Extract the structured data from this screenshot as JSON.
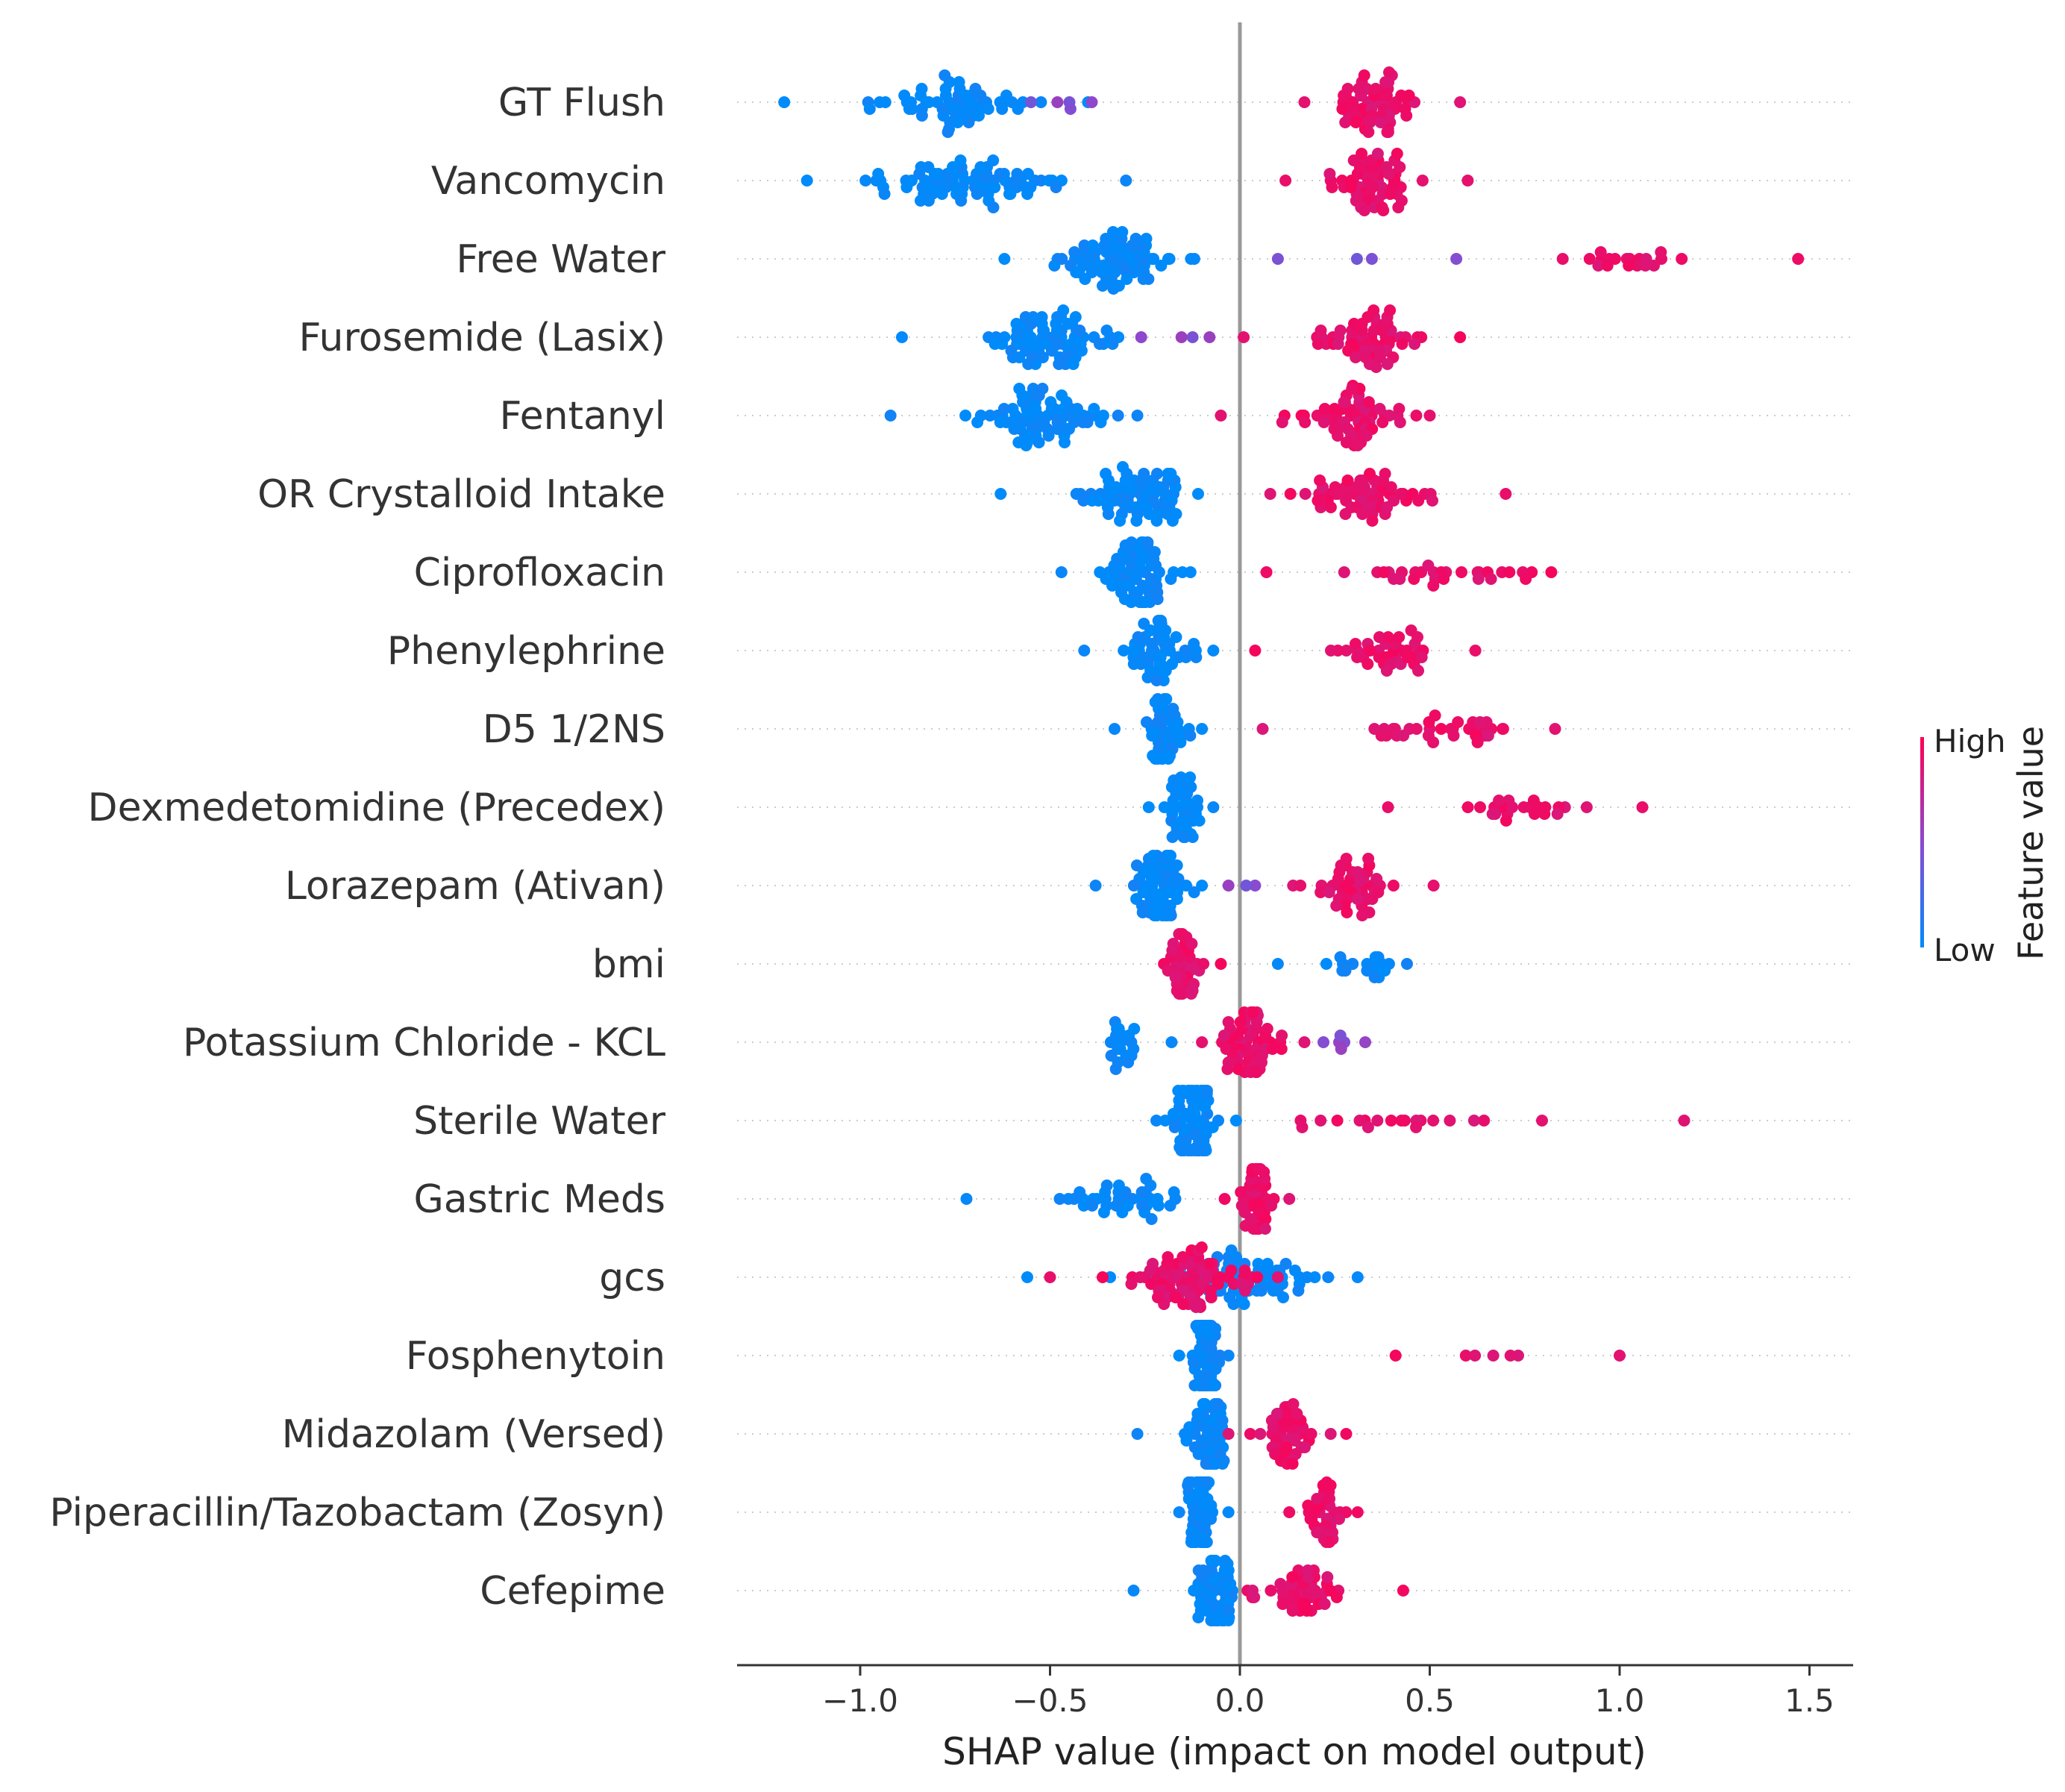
{
  "chart_data": {
    "type": "scatter",
    "subtype": "shap-beeswarm",
    "xlabel": "SHAP value (impact on model output)",
    "xlim": [
      -1.3,
      1.62
    ],
    "xticks": [
      {
        "value": -1.0,
        "label": "−1.0"
      },
      {
        "value": -0.5,
        "label": "−0.5"
      },
      {
        "value": 0.0,
        "label": "0.0"
      },
      {
        "value": 0.5,
        "label": "0.5"
      },
      {
        "value": 1.0,
        "label": "1.0"
      },
      {
        "value": 1.5,
        "label": "1.5"
      }
    ],
    "zero_line": 0.0,
    "grid": "dotted horizontal per feature",
    "colorbar": {
      "title": "Feature value",
      "high_label": "High",
      "low_label": "Low",
      "low_color": "#008bfb",
      "high_color": "#ff0052",
      "placement": "right"
    },
    "features": [
      {
        "name": "GT Flush",
        "low": {
          "min": -1.2,
          "max": -0.4,
          "center": -0.76,
          "n": 60
        },
        "high": {
          "min": 0.17,
          "max": 0.58,
          "center": 0.34,
          "n": 60
        },
        "mixed": {
          "min": -0.55,
          "max": -0.39,
          "n": 5
        }
      },
      {
        "name": "Vancomycin",
        "low": {
          "min": -1.14,
          "max": -0.3,
          "center": -0.72,
          "n": 80
        },
        "high": {
          "min": 0.12,
          "max": 0.6,
          "center": 0.36,
          "n": 60
        },
        "mixed": null
      },
      {
        "name": "Free Water",
        "low": {
          "min": -0.62,
          "max": -0.12,
          "center": -0.33,
          "n": 75
        },
        "high": {
          "min": 0.85,
          "max": 1.47,
          "center": 1.05,
          "n": 20
        },
        "mixed": {
          "min": 0.1,
          "max": 0.57,
          "n": 4
        }
      },
      {
        "name": "Furosemide (Lasix)",
        "low": {
          "min": -0.89,
          "max": -0.32,
          "center": -0.5,
          "n": 75
        },
        "high": {
          "min": 0.01,
          "max": 0.58,
          "center": 0.33,
          "n": 60
        },
        "mixed": {
          "min": -0.26,
          "max": -0.08,
          "n": 4
        }
      },
      {
        "name": "Fentanyl",
        "low": {
          "min": -0.92,
          "max": -0.27,
          "center": -0.5,
          "n": 75
        },
        "high": {
          "min": -0.05,
          "max": 0.5,
          "center": 0.3,
          "n": 60
        },
        "mixed": null
      },
      {
        "name": "OR Crystalloid Intake",
        "low": {
          "min": -0.63,
          "max": -0.11,
          "center": -0.27,
          "n": 70
        },
        "high": {
          "min": 0.08,
          "max": 0.7,
          "center": 0.32,
          "n": 60
        },
        "mixed": null
      },
      {
        "name": "Ciprofloxacin",
        "low": {
          "min": -0.47,
          "max": -0.13,
          "center": -0.27,
          "n": 70
        },
        "high": {
          "min": 0.07,
          "max": 0.82,
          "center": 0.55,
          "n": 30
        },
        "mixed": null
      },
      {
        "name": "Phenylephrine",
        "low": {
          "min": -0.41,
          "max": -0.07,
          "center": -0.22,
          "n": 55
        },
        "high": {
          "min": 0.04,
          "max": 0.62,
          "center": 0.38,
          "n": 40
        },
        "mixed": null
      },
      {
        "name": "D5 1/2NS",
        "low": {
          "min": -0.33,
          "max": -0.1,
          "center": -0.2,
          "n": 45
        },
        "high": {
          "min": 0.06,
          "max": 0.83,
          "center": 0.55,
          "n": 35
        },
        "mixed": null
      },
      {
        "name": "Dexmedetomidine (Precedex)",
        "low": {
          "min": -0.24,
          "max": -0.07,
          "center": -0.15,
          "n": 40
        },
        "high": {
          "min": 0.39,
          "max": 1.06,
          "center": 0.72,
          "n": 25
        },
        "mixed": null
      },
      {
        "name": "Lorazepam (Ativan)",
        "low": {
          "min": -0.38,
          "max": -0.1,
          "center": -0.21,
          "n": 65
        },
        "high": {
          "min": 0.14,
          "max": 0.51,
          "center": 0.3,
          "n": 45
        },
        "mixed": {
          "min": -0.03,
          "max": 0.04,
          "n": 3
        }
      },
      {
        "name": "bmi",
        "low": {
          "min": 0.1,
          "max": 0.44,
          "center": 0.33,
          "n": 20
        },
        "high": {
          "min": -0.2,
          "max": -0.05,
          "center": -0.15,
          "n": 40
        },
        "mixed": null
      },
      {
        "name": "Potassium Chloride - KCL",
        "low": {
          "min": -0.34,
          "max": -0.18,
          "center": -0.32,
          "n": 20
        },
        "high": {
          "min": -0.1,
          "max": 0.17,
          "center": 0.03,
          "n": 60
        },
        "mixed": {
          "min": 0.22,
          "max": 0.33,
          "n": 6
        }
      },
      {
        "name": "Sterile Water",
        "low": {
          "min": -0.22,
          "max": -0.01,
          "center": -0.12,
          "n": 80
        },
        "high": {
          "min": 0.16,
          "max": 1.17,
          "center": 0.45,
          "n": 20
        },
        "mixed": null
      },
      {
        "name": "Gastric Meds",
        "low": {
          "min": -0.72,
          "max": -0.17,
          "center": -0.3,
          "n": 40
        },
        "high": {
          "min": -0.04,
          "max": 0.13,
          "center": 0.04,
          "n": 45
        },
        "mixed": null
      },
      {
        "name": "gcs",
        "low": {
          "min": -0.56,
          "max": 0.31,
          "center": 0.0,
          "n": 80
        },
        "high": {
          "min": -0.5,
          "max": 0.1,
          "center": -0.15,
          "n": 80
        },
        "mixed": null
      },
      {
        "name": "Fosphenytoin",
        "low": {
          "min": -0.16,
          "max": -0.03,
          "center": -0.09,
          "n": 60
        },
        "high": {
          "min": 0.41,
          "max": 1.0,
          "center": 0.65,
          "n": 7
        },
        "mixed": null
      },
      {
        "name": "Midazolam (Versed)",
        "low": {
          "min": -0.27,
          "max": -0.04,
          "center": -0.08,
          "n": 55
        },
        "high": {
          "min": -0.03,
          "max": 0.28,
          "center": 0.12,
          "n": 45
        },
        "mixed": null
      },
      {
        "name": "Piperacillin/Tazobactam (Zosyn)",
        "low": {
          "min": -0.16,
          "max": -0.03,
          "center": -0.1,
          "n": 60
        },
        "high": {
          "min": 0.13,
          "max": 0.31,
          "center": 0.22,
          "n": 35
        },
        "mixed": null
      },
      {
        "name": "Cefepime",
        "low": {
          "min": -0.28,
          "max": -0.02,
          "center": -0.06,
          "n": 60
        },
        "high": {
          "min": 0.02,
          "max": 0.43,
          "center": 0.17,
          "n": 45
        },
        "mixed": null
      }
    ]
  }
}
